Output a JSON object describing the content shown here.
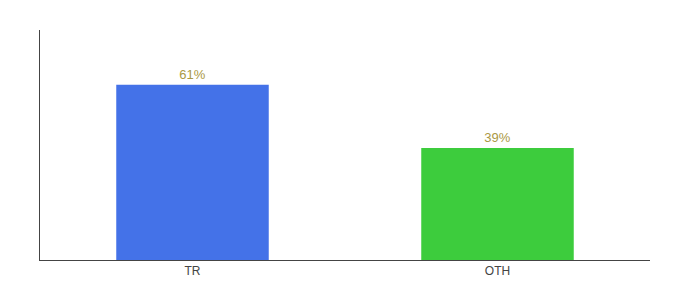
{
  "chart_data": {
    "type": "bar",
    "categories": [
      "TR",
      "OTH"
    ],
    "values": [
      61,
      39
    ],
    "value_labels": [
      "61%",
      "39%"
    ],
    "data_labels": true,
    "colors": [
      "#4472e8",
      "#3dcc3d"
    ],
    "ylim": [
      0,
      80
    ],
    "grid": false,
    "tick_labels": "x"
  }
}
